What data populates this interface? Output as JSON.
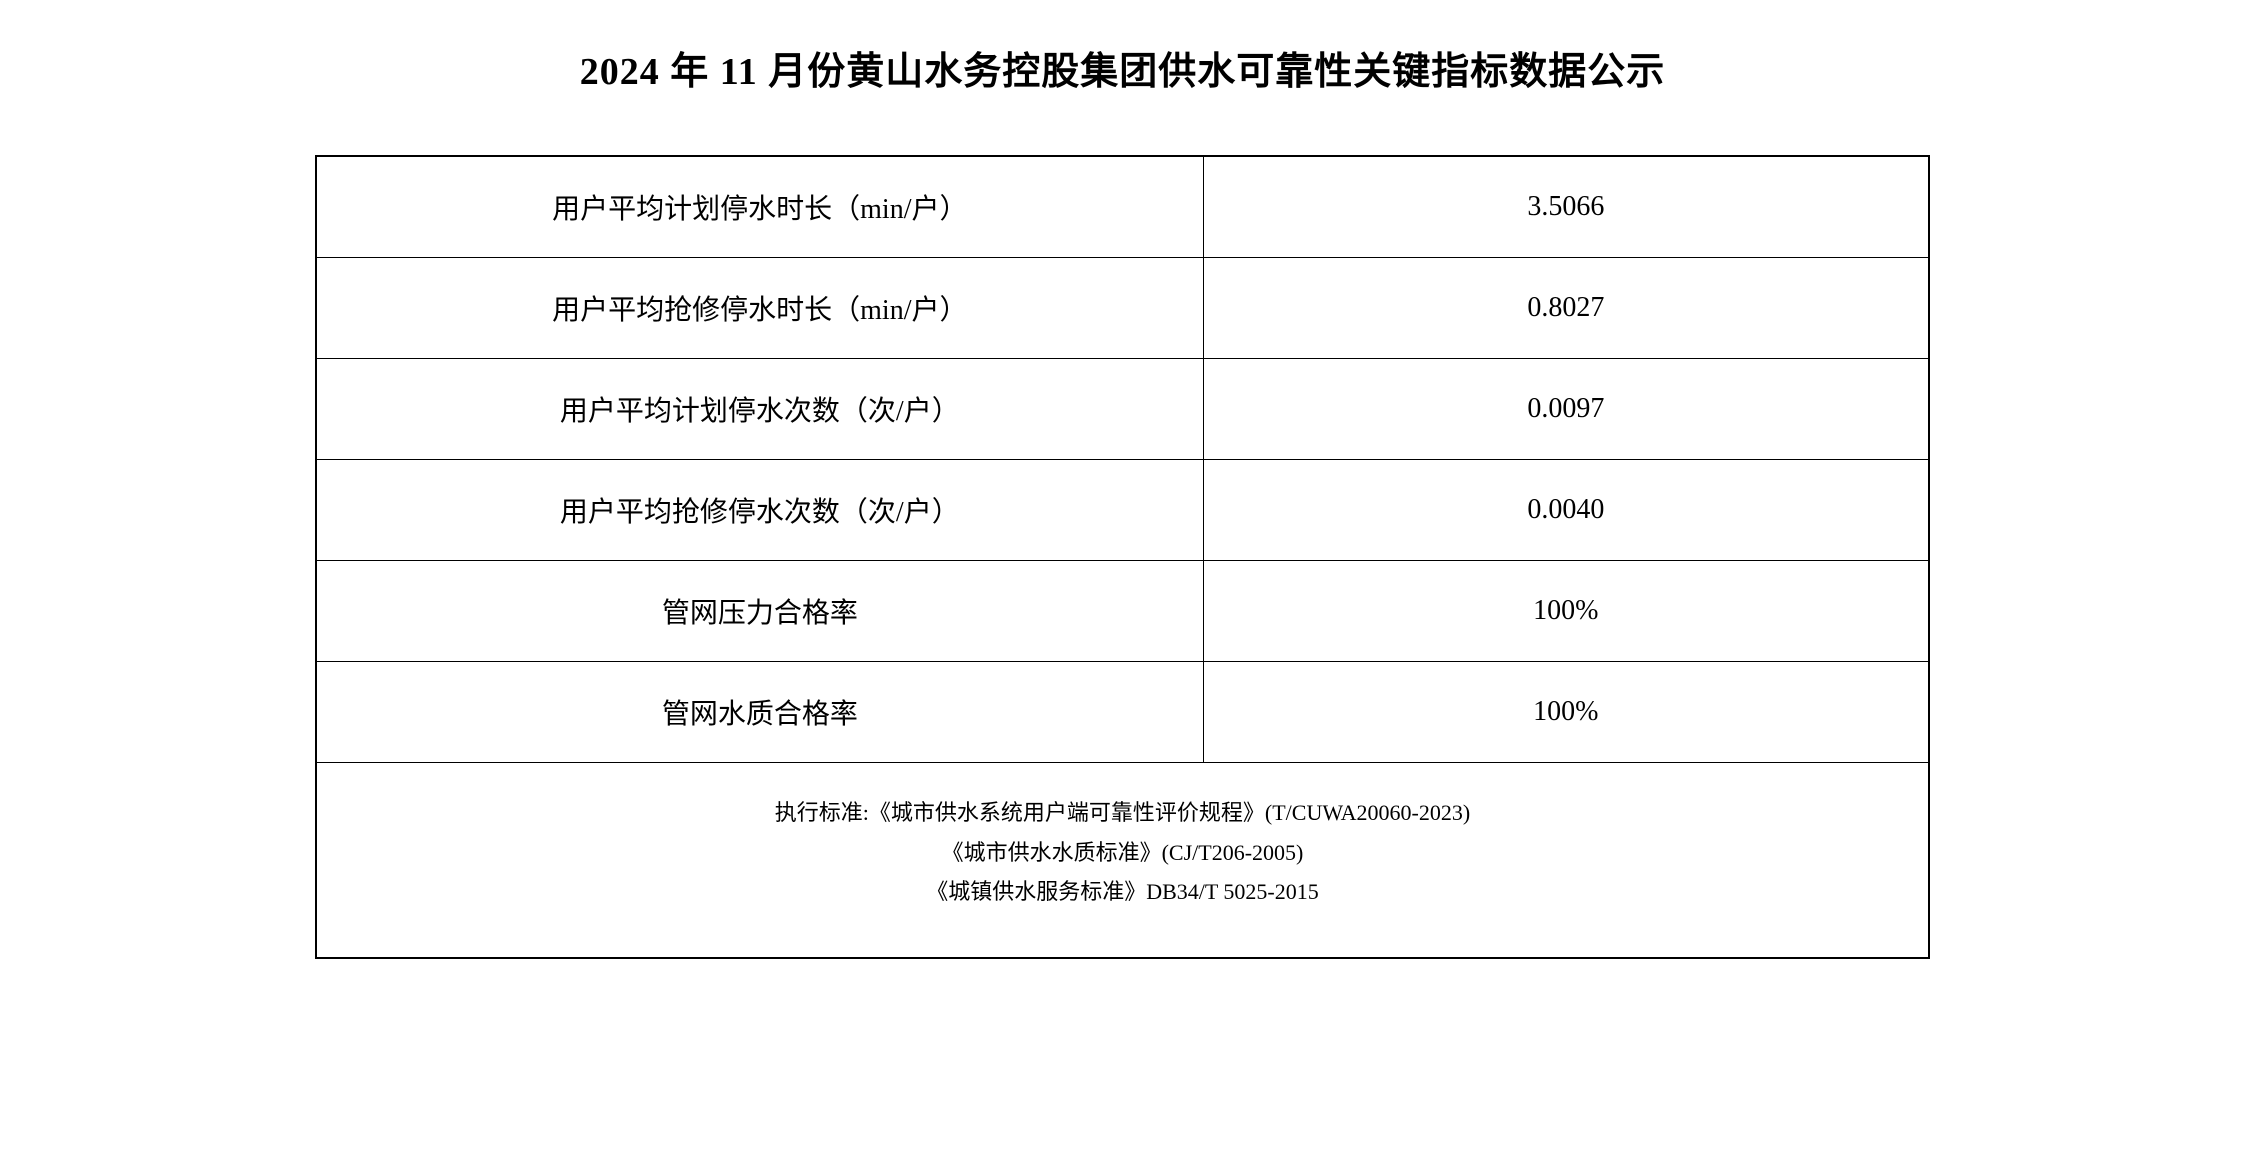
{
  "title": "2024 年 11 月份黄山水务控股集团供水可靠性关键指标数据公示",
  "rows": [
    {
      "label": "用户平均计划停水时长（min/户）",
      "value": "3.5066"
    },
    {
      "label": "用户平均抢修停水时长（min/户）",
      "value": "0.8027"
    },
    {
      "label": "用户平均计划停水次数（次/户）",
      "value": "0.0097"
    },
    {
      "label": "用户平均抢修停水次数（次/户）",
      "value": "0.0040"
    },
    {
      "label": "管网压力合格率",
      "value": "100%"
    },
    {
      "label": "管网水质合格率",
      "value": "100%"
    }
  ],
  "footer": {
    "line1": "执行标准:《城市供水系统用户端可靠性评价规程》(T/CUWA20060-2023)",
    "line2": "《城市供水水质标准》(CJ/T206-2005)",
    "line3": "《城镇供水服务标准》DB34/T 5025-2015"
  },
  "styling": {
    "background_color": "#ffffff",
    "text_color": "#000000",
    "border_color": "#000000",
    "title_fontsize": 38,
    "cell_fontsize": 28,
    "footer_fontsize": 22,
    "font_family": "SimSun"
  }
}
